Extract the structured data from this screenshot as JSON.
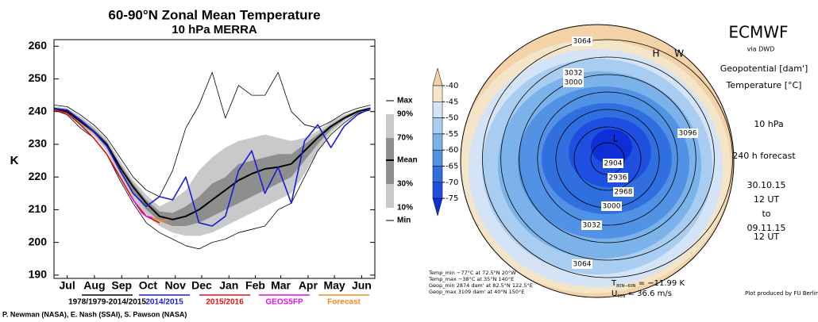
{
  "chart_data": {
    "type": "line",
    "title": "60-90°N Zonal Mean Temperature",
    "subtitle": "10 hPa   MERRA",
    "y_label": "K",
    "credit": "P. Newman (NASA), E. Nash (SSAI), S. Pawson (NASA)",
    "climatology_label": "1978/1979-2014/2015",
    "xlim": [
      0,
      365
    ],
    "xticks": [
      {
        "value": 15,
        "label": "Jul"
      },
      {
        "value": 46,
        "label": "Aug"
      },
      {
        "value": 77,
        "label": "Sep"
      },
      {
        "value": 107,
        "label": "Oct"
      },
      {
        "value": 138,
        "label": "Nov"
      },
      {
        "value": 168,
        "label": "Dec"
      },
      {
        "value": 199,
        "label": "Jan"
      },
      {
        "value": 229,
        "label": "Feb"
      },
      {
        "value": 258,
        "label": "Mar"
      },
      {
        "value": 289,
        "label": "Apr"
      },
      {
        "value": 319,
        "label": "May"
      },
      {
        "value": 350,
        "label": "Jun"
      }
    ],
    "ylim": [
      189,
      262
    ],
    "yticks": [
      190,
      200,
      210,
      220,
      230,
      240,
      250,
      260
    ],
    "x": [
      0,
      15,
      30,
      45,
      60,
      75,
      90,
      105,
      120,
      135,
      150,
      165,
      180,
      195,
      210,
      225,
      240,
      255,
      270,
      285,
      300,
      315,
      330,
      345,
      360
    ],
    "series": [
      {
        "name": "90%",
        "style": "band-top",
        "fill": "#c9c9c9",
        "values": [
          241.5,
          241,
          238.5,
          235.5,
          231.5,
          225,
          219,
          214.5,
          211,
          213,
          216,
          222,
          226,
          229,
          231,
          232,
          233,
          232,
          231,
          232,
          234,
          237,
          239,
          240.5,
          241.5
        ]
      },
      {
        "name": "10%",
        "style": "band-bottom",
        "values": [
          240.6,
          239.2,
          235.8,
          232.7,
          228,
          220,
          213.5,
          208.5,
          205,
          203,
          202,
          202,
          203,
          205,
          207,
          209,
          211,
          213,
          215,
          221,
          228,
          233.5,
          237,
          239.6,
          240.6
        ]
      },
      {
        "name": "70%",
        "style": "band-top",
        "fill": "#8e8e8e",
        "values": [
          241.2,
          240.5,
          237.8,
          234.8,
          230.8,
          224,
          218,
          213,
          209.5,
          209,
          211,
          214,
          218,
          220,
          224,
          225,
          226,
          227,
          227,
          230,
          233,
          236,
          238.5,
          240.3,
          241.2
        ]
      },
      {
        "name": "30%",
        "style": "band-bottom",
        "values": [
          240.8,
          239.5,
          236.3,
          233.3,
          229,
          221.5,
          215,
          210,
          206.5,
          205,
          205,
          206,
          208,
          210,
          212,
          214,
          216,
          218,
          220,
          225,
          230,
          234.5,
          237.5,
          239.7,
          240.8
        ]
      },
      {
        "name": "Max",
        "color": "#000000",
        "width": 0.8,
        "values": [
          242,
          241.5,
          239,
          236,
          232,
          226,
          220,
          216,
          214,
          222,
          235,
          242,
          252,
          238,
          248,
          245,
          245,
          252,
          240,
          236,
          235,
          237,
          239.5,
          241,
          242
        ]
      },
      {
        "name": "Min",
        "color": "#000000",
        "width": 0.8,
        "values": [
          240.5,
          239,
          235,
          232,
          227,
          219,
          212,
          206,
          203,
          201,
          199,
          198,
          200,
          201,
          203,
          204,
          205,
          210,
          212,
          220,
          228,
          233,
          236.5,
          239.5,
          240.5
        ]
      },
      {
        "name": "Mean",
        "color": "#000000",
        "width": 2,
        "values": [
          241,
          240,
          237,
          234,
          230,
          223,
          217,
          212,
          208,
          207,
          208,
          210,
          213,
          216,
          219,
          221,
          222.5,
          223,
          224,
          228,
          232,
          235.5,
          238,
          240,
          241
        ]
      },
      {
        "name": "2014/2015",
        "color": "#1a1adc",
        "width": 1.6,
        "values": [
          241,
          240.5,
          237.5,
          234,
          229.5,
          222,
          215,
          211,
          214,
          213,
          220,
          206,
          205,
          208,
          222,
          228,
          215,
          223,
          212,
          231,
          236,
          229,
          235.5,
          239,
          241
        ]
      },
      {
        "name": "2015/2016",
        "color": "#e01010",
        "width": 1.6,
        "x": [
          0,
          15,
          30,
          45,
          60,
          75,
          90,
          105,
          120
        ],
        "values": [
          240.5,
          239.5,
          236,
          232,
          227,
          220,
          213,
          208,
          206
        ]
      },
      {
        "name": "GEOS5FP",
        "color": "#e010e0",
        "width": 1.6,
        "x": [
          88,
          95,
          100,
          105,
          112
        ],
        "values": [
          214,
          211,
          209,
          208,
          207.5
        ]
      },
      {
        "name": "Forecast",
        "color": "#f08c20",
        "width": 1.6,
        "x": [
          112,
          118,
          124,
          130
        ],
        "values": [
          207.5,
          207,
          206.5,
          207
        ]
      }
    ]
  },
  "map": {
    "title": "ECMWF",
    "source": "via DWD",
    "fields": [
      "Geopotential [dam']",
      "Temperature [°C]"
    ],
    "level": "10 hPa",
    "forecast": "240 h forecast",
    "dates": [
      "30.10.15",
      "12 UT",
      "to",
      "09.11.15",
      "12 UT"
    ],
    "footer": "Plot produced by FU Berlin",
    "colorbar": {
      "ticks": [
        -40,
        -45,
        -50,
        -55,
        -60,
        -65,
        -70,
        -75
      ],
      "colors": [
        "#f2d2a6",
        "#f4e4c8",
        "#d4e4f6",
        "#a9cdf0",
        "#7cb2ea",
        "#5292e4",
        "#2f6fe0",
        "#1f4fe0",
        "#0e2ed6"
      ]
    },
    "contour_labels": [
      "3064",
      "3032",
      "3000",
      "3096",
      "2904",
      "2936",
      "2968",
      "3000",
      "3032",
      "3064"
    ],
    "markers": [
      "H",
      "W",
      "L"
    ],
    "stats": [
      "Temp_min −77°C at 72.5°N 20°W",
      "Temp_max −38°C at 35°N 140°E",
      "Geop_min 2874 dam' at 82.5°N 122.5°E",
      "Geop_max 3109 dam' at 40°N 150°E"
    ],
    "indices": [
      {
        "symbol": "T",
        "sub": "80N−60N",
        "text": " = −11.99 K"
      },
      {
        "symbol": "U",
        "sub": "60N",
        "text": " = 36.6 m/s"
      }
    ]
  }
}
